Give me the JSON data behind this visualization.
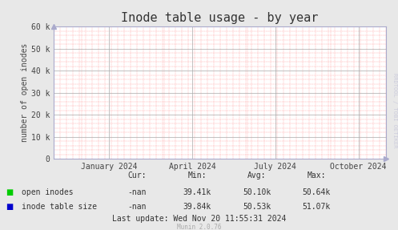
{
  "title": "Inode table usage - by year",
  "ylabel": "number of open inodes",
  "bg_color": "#e8e8e8",
  "plot_bg_color": "#ffffff",
  "grid_color_major": "#aaaaaa",
  "grid_color_minor": "#ff9999",
  "axis_color": "#aaaacc",
  "x_labels": [
    "January 2024",
    "April 2024",
    "July 2024",
    "October 2024"
  ],
  "ylim": [
    0,
    60000
  ],
  "yticks": [
    0,
    10000,
    20000,
    30000,
    40000,
    50000,
    60000
  ],
  "ytick_labels": [
    "0",
    "10 k",
    "20 k",
    "30 k",
    "40 k",
    "50 k",
    "60 k"
  ],
  "legend_entries": [
    {
      "label": "open inodes",
      "color": "#00cc00"
    },
    {
      "label": "inode table size",
      "color": "#0000cc"
    }
  ],
  "table_headers": [
    "Cur:",
    "Min:",
    "Avg:",
    "Max:"
  ],
  "table_row1": [
    "-nan",
    "39.41k",
    "50.10k",
    "50.64k"
  ],
  "table_row2": [
    "-nan",
    "39.84k",
    "50.53k",
    "51.07k"
  ],
  "last_update": "Last update: Wed Nov 20 11:55:31 2024",
  "munin_version": "Munin 2.0.76",
  "rrdtool_text": "RRDTOOL / TOBI OETIKER",
  "title_fontsize": 11,
  "label_fontsize": 7,
  "tick_fontsize": 7,
  "table_fontsize": 7
}
